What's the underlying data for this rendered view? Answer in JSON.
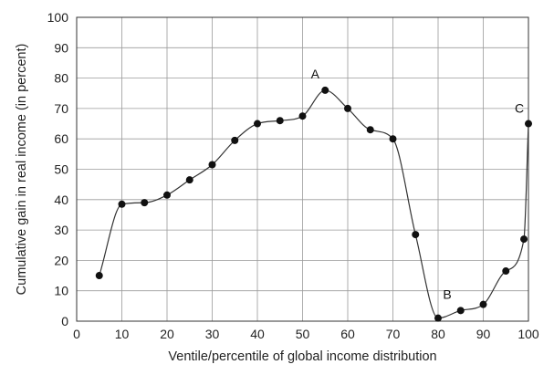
{
  "chart_data": {
    "type": "line",
    "title": "",
    "xlabel": "Ventile/percentile of global income distribution",
    "ylabel": "Cumulative gain in real income (in percent)",
    "xlim": [
      0,
      100
    ],
    "ylim": [
      0,
      100
    ],
    "xticks": [
      0,
      10,
      20,
      30,
      40,
      50,
      60,
      70,
      80,
      90,
      100
    ],
    "yticks": [
      0,
      10,
      20,
      30,
      40,
      50,
      60,
      70,
      80,
      90,
      100
    ],
    "grid": true,
    "series": [
      {
        "x": [
          5,
          10,
          15,
          20,
          25,
          30,
          35,
          40,
          45,
          50,
          55,
          60,
          65,
          70,
          75,
          80,
          85,
          90,
          95,
          99,
          100
        ],
        "y": [
          15,
          38.5,
          39,
          41.5,
          46.5,
          51.5,
          59.5,
          65,
          66,
          67.5,
          76,
          70,
          63,
          60,
          28.5,
          1,
          3.5,
          5.5,
          16.5,
          27,
          65
        ]
      }
    ],
    "annotations": [
      {
        "text": "A",
        "x": 55,
        "y": 76
      },
      {
        "text": "B",
        "x": 80,
        "y": 1
      },
      {
        "text": "C",
        "x": 100,
        "y": 65
      }
    ]
  }
}
